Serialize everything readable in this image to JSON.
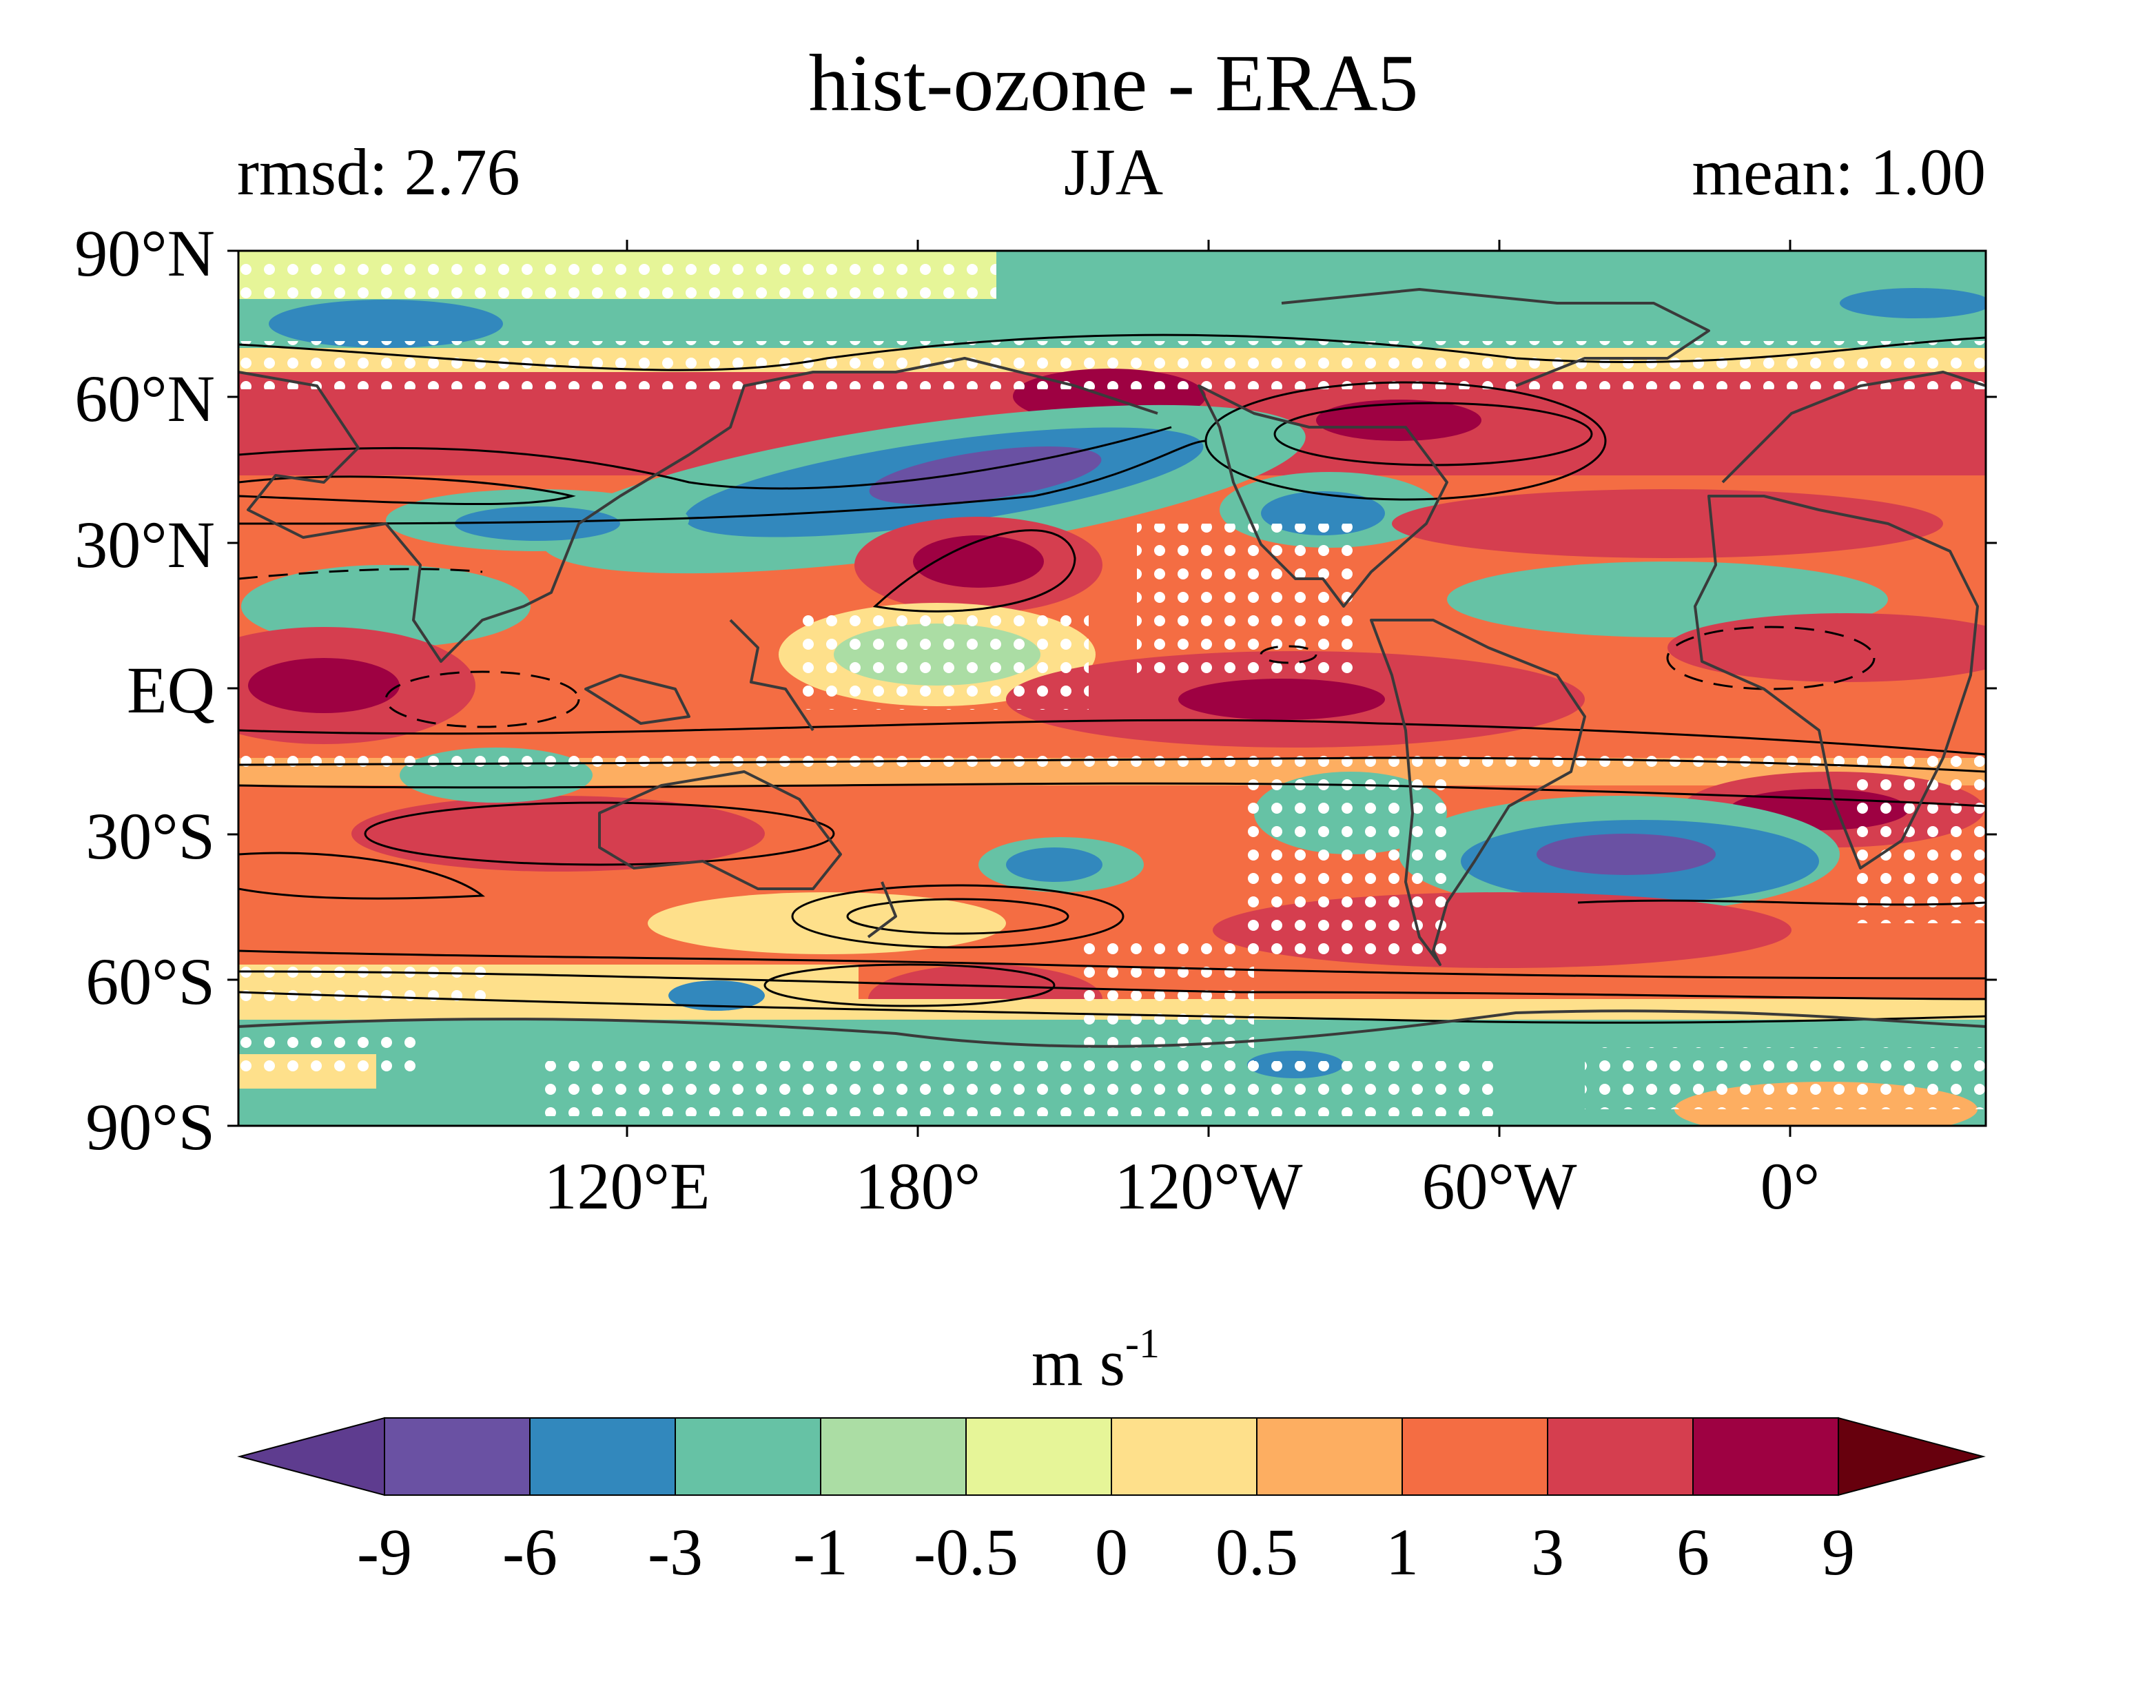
{
  "title": "hist-ozone - ERA5",
  "subtitle": {
    "left": "rmsd: 2.76",
    "center": "JJA",
    "right": "mean: 1.00"
  },
  "map": {
    "y_tick_labels": [
      "90°N",
      "60°N",
      "30°N",
      "EQ",
      "30°S",
      "60°S",
      "90°S"
    ],
    "x_tick_labels": [
      "120°E",
      "180°",
      "120°W",
      "60°W",
      "0°"
    ],
    "stippling_color": "#ffffff",
    "contour_color": "#000000",
    "coastline_color": "#3a3a3a"
  },
  "colorbar": {
    "unit_label": "m s",
    "unit_superscript": "-1",
    "tick_labels": [
      "-9",
      "-6",
      "-3",
      "-1",
      "-0.5",
      "0",
      "0.5",
      "1",
      "3",
      "6",
      "9"
    ],
    "colors": [
      "#5e3c8f",
      "#6a51a3",
      "#3288bd",
      "#66c2a5",
      "#abdda4",
      "#e6f598",
      "#fee08b",
      "#fdae61",
      "#f46d43",
      "#d53e4f",
      "#9e0142",
      "#67000d"
    ]
  }
}
